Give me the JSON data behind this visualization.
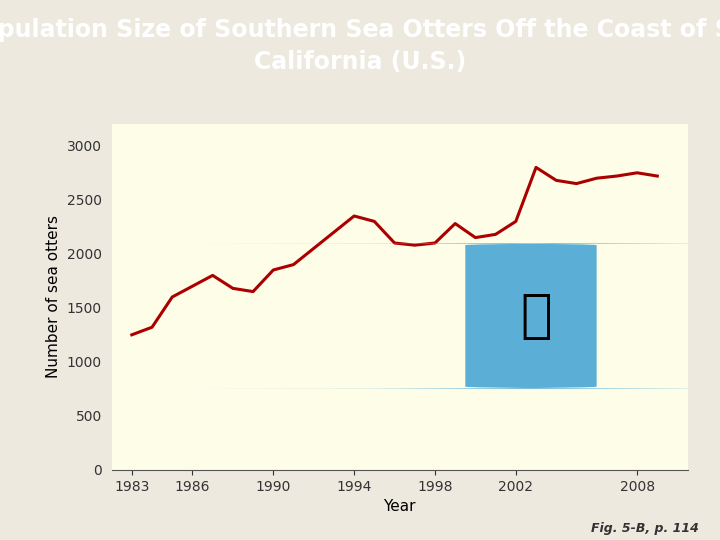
{
  "years": [
    1983,
    1984,
    1985,
    1986,
    1987,
    1988,
    1989,
    1990,
    1991,
    1992,
    1993,
    1994,
    1995,
    1996,
    1997,
    1998,
    1999,
    2000,
    2001,
    2002,
    2003,
    2004,
    2005,
    2006,
    2007,
    2008,
    2009
  ],
  "population": [
    1250,
    1320,
    1600,
    1700,
    1800,
    1680,
    1650,
    1850,
    1900,
    2050,
    2200,
    2350,
    2300,
    2100,
    2080,
    2100,
    2280,
    2150,
    2180,
    2300,
    2800,
    2680,
    2650,
    2700,
    2720,
    2750,
    2720
  ],
  "line_color": "#aa0000",
  "line_width": 2.2,
  "plot_bg_color": "#fdfde8",
  "outer_bg_color": "#ede9df",
  "title_line1": "Population Size of Southern Sea Otters Off the Coast of So.",
  "title_line2": "California (U.S.)",
  "title_bg_color": "#2d527c",
  "title_text_color": "#ffffff",
  "xlabel": "Year",
  "ylabel": "Number of sea otters",
  "ylim": [
    0,
    3200
  ],
  "yticks": [
    0,
    500,
    1000,
    1500,
    2000,
    2500,
    3000
  ],
  "xticks": [
    1983,
    1986,
    1990,
    1994,
    1998,
    2002,
    2008
  ],
  "caption": "Fig. 5-B, p. 114",
  "title_fontsize": 17,
  "axis_label_fontsize": 11,
  "tick_fontsize": 10,
  "otter_img_color": "#5bafd6"
}
